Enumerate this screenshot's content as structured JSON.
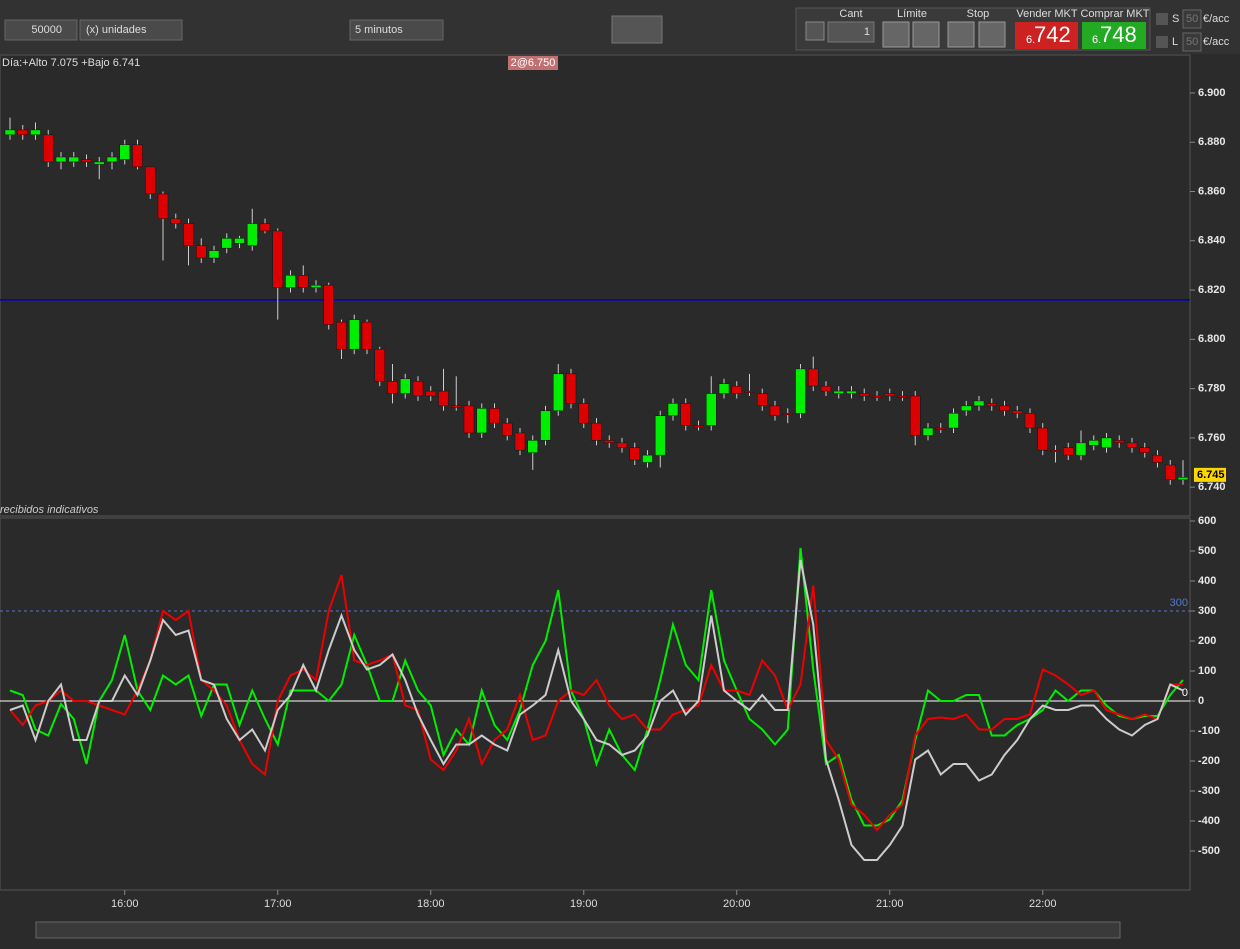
{
  "toolbar": {
    "quantity": "50000",
    "units": "(x) unidades",
    "timeframe": "5 minutos",
    "cant_label": "Cant",
    "cant_value": "1",
    "limit_label": "Límite",
    "stop_label": "Stop",
    "sell_label": "Vender MKT",
    "sell_price_prefix": "6.",
    "sell_price": "742",
    "buy_label": "Comprar MKT",
    "buy_price_prefix": "6.",
    "buy_price": "748",
    "s_label": "S",
    "s_value": "50",
    "s_unit": "€/acc",
    "l_label": "L",
    "l_value": "50",
    "l_unit": "€/acc"
  },
  "chart_data": [
    {
      "type": "candlestick",
      "subtitle": "Día:+Alto 7.075 +Bajo 6.741",
      "annotation": "2@6.750",
      "footer": "recibidos indicativos",
      "up_color": "#00ee00",
      "down_color": "#dd0000",
      "open": [
        6.883,
        6.885,
        6.883,
        6.883,
        6.872,
        6.872,
        6.873,
        6.871,
        6.872,
        6.873,
        6.879,
        6.87,
        6.859,
        6.849,
        6.847,
        6.838,
        6.833,
        6.837,
        6.839,
        6.838,
        6.847,
        6.844,
        6.821,
        6.826,
        6.821,
        6.822,
        6.807,
        6.796,
        6.807,
        6.796,
        6.783,
        6.778,
        6.783,
        6.779,
        6.779,
        6.773,
        6.773,
        6.762,
        6.772,
        6.766,
        6.762,
        6.754,
        6.759,
        6.771,
        6.786,
        6.774,
        6.766,
        6.759,
        6.758,
        6.756,
        6.75,
        6.753,
        6.769,
        6.774,
        6.765,
        6.765,
        6.778,
        6.781,
        6.779,
        6.778,
        6.773,
        6.77,
        6.77,
        6.788,
        6.781,
        6.778,
        6.778,
        6.778,
        6.777,
        6.778,
        6.777,
        6.777,
        6.761,
        6.764,
        6.764,
        6.771,
        6.773,
        6.774,
        6.773,
        6.771,
        6.77,
        6.764,
        6.755,
        6.756,
        6.753,
        6.757,
        6.756,
        6.759,
        6.758,
        6.756,
        6.753,
        6.749,
        6.743
      ],
      "high": [
        6.89,
        6.887,
        6.888,
        6.885,
        6.876,
        6.876,
        6.875,
        6.874,
        6.876,
        6.881,
        6.881,
        6.87,
        6.86,
        6.851,
        6.849,
        6.841,
        6.838,
        6.843,
        6.842,
        6.853,
        6.849,
        6.845,
        6.828,
        6.83,
        6.824,
        6.823,
        6.808,
        6.81,
        6.808,
        6.797,
        6.79,
        6.786,
        6.785,
        6.781,
        6.788,
        6.785,
        6.775,
        6.774,
        6.774,
        6.768,
        6.764,
        6.761,
        6.773,
        6.79,
        6.788,
        6.776,
        6.768,
        6.761,
        6.76,
        6.758,
        6.755,
        6.771,
        6.776,
        6.776,
        6.767,
        6.785,
        6.784,
        6.783,
        6.786,
        6.78,
        6.775,
        6.772,
        6.79,
        6.793,
        6.783,
        6.781,
        6.781,
        6.78,
        6.779,
        6.78,
        6.779,
        6.779,
        6.766,
        6.766,
        6.772,
        6.775,
        6.777,
        6.776,
        6.775,
        6.773,
        6.772,
        6.766,
        6.757,
        6.758,
        6.763,
        6.761,
        6.762,
        6.761,
        6.76,
        6.758,
        6.755,
        6.751,
        6.751
      ],
      "low": [
        6.881,
        6.881,
        6.881,
        6.87,
        6.869,
        6.87,
        6.87,
        6.865,
        6.869,
        6.871,
        6.869,
        6.857,
        6.832,
        6.845,
        6.83,
        6.831,
        6.831,
        6.835,
        6.837,
        6.836,
        6.843,
        6.808,
        6.819,
        6.819,
        6.819,
        6.804,
        6.792,
        6.794,
        6.794,
        6.781,
        6.774,
        6.776,
        6.775,
        6.775,
        6.771,
        6.771,
        6.76,
        6.76,
        6.764,
        6.759,
        6.753,
        6.747,
        6.757,
        6.769,
        6.772,
        6.764,
        6.757,
        6.756,
        6.754,
        6.749,
        6.748,
        6.748,
        6.767,
        6.763,
        6.763,
        6.763,
        6.776,
        6.776,
        6.777,
        6.771,
        6.767,
        6.766,
        6.768,
        6.779,
        6.777,
        6.776,
        6.776,
        6.775,
        6.775,
        6.775,
        6.775,
        6.757,
        6.759,
        6.762,
        6.762,
        6.769,
        6.771,
        6.771,
        6.769,
        6.768,
        6.762,
        6.753,
        6.75,
        6.751,
        6.751,
        6.755,
        6.754,
        6.756,
        6.754,
        6.752,
        6.748,
        6.741,
        6.741
      ],
      "close": [
        6.885,
        6.883,
        6.885,
        6.872,
        6.874,
        6.874,
        6.872,
        6.872,
        6.874,
        6.879,
        6.87,
        6.859,
        6.849,
        6.847,
        6.838,
        6.833,
        6.836,
        6.841,
        6.841,
        6.847,
        6.844,
        6.821,
        6.826,
        6.821,
        6.822,
        6.806,
        6.796,
        6.808,
        6.796,
        6.783,
        6.778,
        6.784,
        6.777,
        6.777,
        6.773,
        6.773,
        6.762,
        6.772,
        6.766,
        6.761,
        6.755,
        6.759,
        6.771,
        6.786,
        6.774,
        6.766,
        6.759,
        6.758,
        6.756,
        6.751,
        6.753,
        6.769,
        6.774,
        6.765,
        6.765,
        6.778,
        6.782,
        6.778,
        6.779,
        6.773,
        6.769,
        6.77,
        6.788,
        6.781,
        6.779,
        6.779,
        6.779,
        6.777,
        6.777,
        6.777,
        6.777,
        6.761,
        6.764,
        6.764,
        6.77,
        6.773,
        6.775,
        6.773,
        6.771,
        6.77,
        6.764,
        6.755,
        6.755,
        6.753,
        6.758,
        6.759,
        6.76,
        6.758,
        6.756,
        6.754,
        6.75,
        6.743,
        6.744
      ],
      "ylim": [
        6.7283,
        6.9154
      ],
      "yticks": [
        {
          "value": 6.9,
          "label": "6.900"
        },
        {
          "value": 6.88,
          "label": "6.880"
        },
        {
          "value": 6.86,
          "label": "6.860"
        },
        {
          "value": 6.84,
          "label": "6.840"
        },
        {
          "value": 6.82,
          "label": "6.820"
        },
        {
          "value": 6.8,
          "label": "6.800"
        },
        {
          "value": 6.78,
          "label": "6.780"
        },
        {
          "value": 6.76,
          "label": "6.760"
        },
        {
          "value": 6.74,
          "label": "6.740"
        }
      ],
      "hline": {
        "value": 6.816,
        "color": "#0000cc"
      },
      "last_price": {
        "value": 6.745,
        "label": "6.745"
      }
    },
    {
      "type": "line",
      "ylim": [
        -630,
        610
      ],
      "yticks": [
        600,
        500,
        400,
        300,
        200,
        100,
        0,
        -100,
        -200,
        -300,
        -400,
        -500
      ],
      "hlines": [
        {
          "value": 300,
          "color": "#5577cc"
        },
        {
          "value": 0,
          "color": "#ffffff"
        }
      ],
      "xticks": [
        {
          "value": 9,
          "label": "16:00"
        },
        {
          "value": 21,
          "label": "17:00"
        },
        {
          "value": 33,
          "label": "18:00"
        },
        {
          "value": 45,
          "label": "19:00"
        },
        {
          "value": 57,
          "label": "20:00"
        },
        {
          "value": 69,
          "label": "21:00"
        },
        {
          "value": 81,
          "label": "22:00"
        }
      ],
      "series": [
        {
          "color": "#00ee00",
          "values": [
            35,
            20,
            -95,
            -115,
            -10,
            -60,
            -210,
            0,
            70,
            220,
            35,
            -30,
            85,
            55,
            85,
            -50,
            55,
            55,
            -80,
            35,
            -60,
            -145,
            35,
            35,
            35,
            0,
            55,
            220,
            120,
            0,
            0,
            135,
            35,
            -15,
            -180,
            -95,
            -145,
            35,
            -80,
            -130,
            -30,
            120,
            200,
            370,
            35,
            -60,
            -210,
            -95,
            -180,
            -230,
            -95,
            70,
            255,
            120,
            70,
            370,
            135,
            35,
            -60,
            -95,
            -145,
            -95,
            510,
            105,
            -210,
            -180,
            -330,
            -415,
            -415,
            -395,
            -330,
            -130,
            35,
            0,
            0,
            20,
            20,
            -115,
            -115,
            -80,
            -60,
            -30,
            35,
            0,
            35,
            35,
            -15,
            -50,
            -60,
            -50,
            -50,
            20,
            70
          ]
        },
        {
          "color": "#ee0000",
          "values": [
            -30,
            -80,
            -15,
            0,
            35,
            0,
            0,
            -15,
            -30,
            -45,
            35,
            135,
            300,
            270,
            300,
            70,
            35,
            -15,
            -130,
            -210,
            -245,
            0,
            85,
            105,
            70,
            300,
            420,
            135,
            120,
            135,
            155,
            -15,
            -30,
            -195,
            -230,
            -165,
            -60,
            -210,
            -130,
            -95,
            20,
            -130,
            -115,
            0,
            35,
            20,
            70,
            -15,
            -60,
            -45,
            -95,
            -95,
            -45,
            -30,
            -15,
            120,
            35,
            35,
            20,
            135,
            85,
            -30,
            55,
            385,
            -130,
            -195,
            -345,
            -380,
            -430,
            -380,
            -345,
            -115,
            -60,
            -55,
            -60,
            -45,
            -95,
            -95,
            -60,
            -60,
            -45,
            105,
            85,
            55,
            20,
            35,
            -30,
            -45,
            -60,
            -45,
            -60,
            55,
            55
          ]
        },
        {
          "color": "#cccccc",
          "values": [
            -30,
            -15,
            -130,
            0,
            55,
            -130,
            -130,
            0,
            0,
            85,
            20,
            135,
            270,
            220,
            235,
            70,
            55,
            -60,
            -130,
            -95,
            -165,
            -30,
            20,
            120,
            35,
            170,
            285,
            170,
            105,
            120,
            155,
            70,
            -45,
            -130,
            -210,
            -145,
            -145,
            -115,
            -145,
            -165,
            -45,
            -15,
            20,
            170,
            0,
            -60,
            -130,
            -145,
            -180,
            -165,
            -115,
            0,
            35,
            -45,
            0,
            285,
            35,
            0,
            -30,
            20,
            -30,
            -30,
            470,
            255,
            -195,
            -330,
            -480,
            -530,
            -530,
            -480,
            -415,
            -195,
            -165,
            -245,
            -210,
            -210,
            -265,
            -245,
            -180,
            -130,
            -60,
            -15,
            -30,
            -30,
            -15,
            -15,
            -60,
            -95,
            -115,
            -80,
            -60,
            55,
            35
          ]
        }
      ]
    }
  ]
}
